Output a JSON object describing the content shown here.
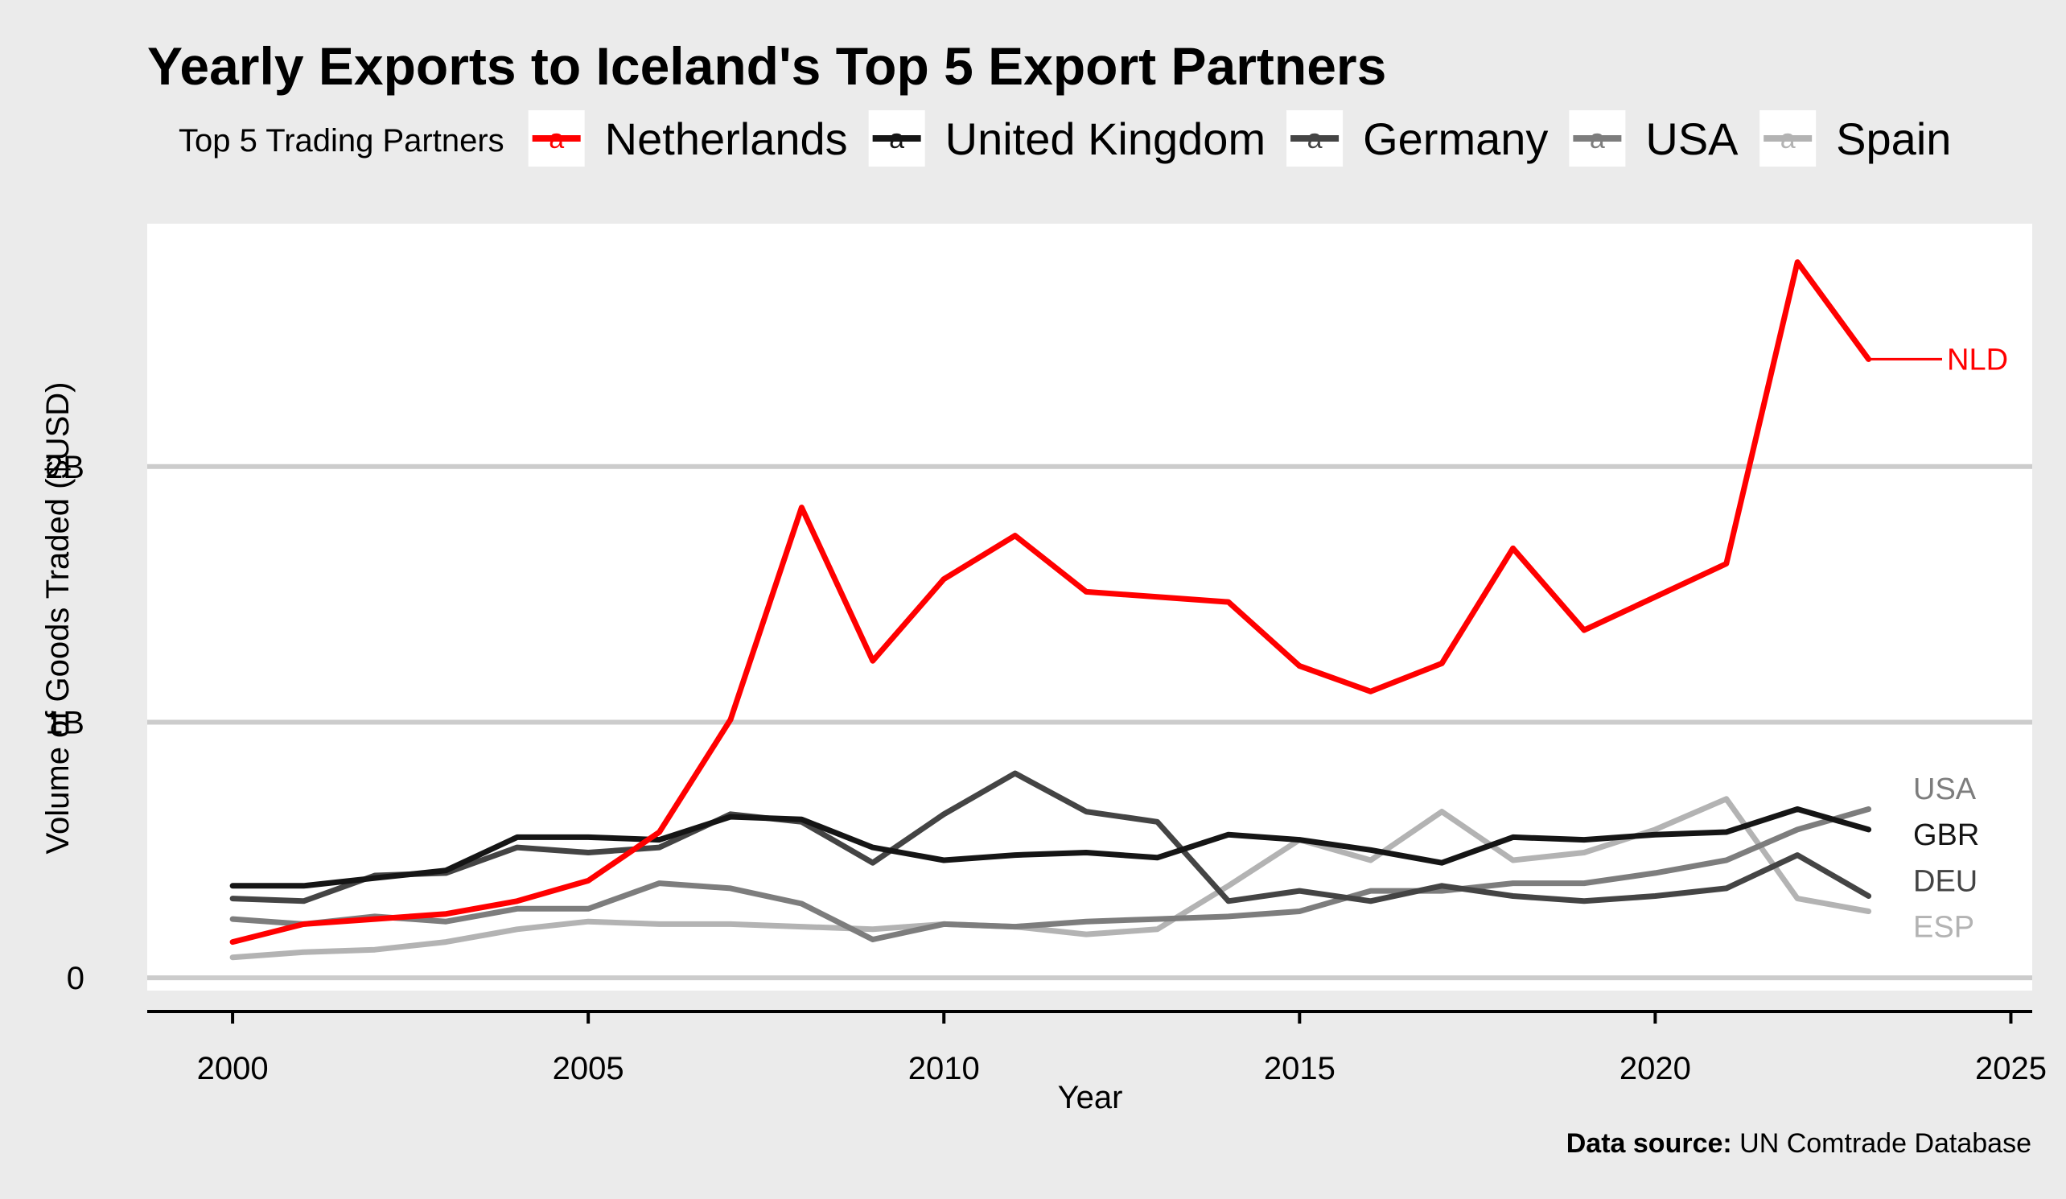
{
  "chart_data": {
    "type": "line",
    "title": "Yearly Exports to Iceland's Top 5 Export Partners",
    "xlabel": "Year",
    "ylabel": "Volume of Goods Traded ($USD)",
    "caption_bold": "Data source:",
    "caption_text": " UN Comtrade Database",
    "legend_title": "Top 5 Trading Partners",
    "legend_key_glyph": "a",
    "legend_position": "top",
    "grid": "horizontal-major",
    "xlim": [
      1998.8,
      2025.3
    ],
    "ylim": [
      -0.05,
      2.95
    ],
    "x_ticks": [
      2000,
      2005,
      2010,
      2015,
      2020,
      2025
    ],
    "x_tick_labels": [
      "2000",
      "2005",
      "2010",
      "2015",
      "2020",
      "2025"
    ],
    "y_ticks": [
      0,
      1,
      2
    ],
    "y_tick_labels": [
      "0",
      "1B",
      "2B"
    ],
    "x": [
      2000,
      2001,
      2002,
      2003,
      2004,
      2005,
      2006,
      2007,
      2008,
      2009,
      2010,
      2011,
      2012,
      2013,
      2014,
      2015,
      2016,
      2017,
      2018,
      2019,
      2020,
      2021,
      2022,
      2023
    ],
    "series": [
      {
        "name": "Netherlands",
        "code": "NLD",
        "color": "#ff0000",
        "values": [
          0.14,
          0.21,
          0.23,
          0.25,
          0.3,
          0.38,
          0.57,
          1.01,
          1.84,
          1.24,
          1.56,
          1.73,
          1.51,
          1.49,
          1.47,
          1.22,
          1.12,
          1.23,
          1.68,
          1.36,
          1.49,
          1.62,
          2.8,
          2.42
        ]
      },
      {
        "name": "United Kingdom",
        "code": "GBR",
        "color": "#151515",
        "values": [
          0.36,
          0.36,
          0.39,
          0.42,
          0.55,
          0.55,
          0.54,
          0.63,
          0.62,
          0.51,
          0.46,
          0.48,
          0.49,
          0.47,
          0.56,
          0.54,
          0.5,
          0.45,
          0.55,
          0.54,
          0.56,
          0.57,
          0.66,
          0.58
        ]
      },
      {
        "name": "Germany",
        "code": "DEU",
        "color": "#444444",
        "values": [
          0.31,
          0.3,
          0.4,
          0.41,
          0.51,
          0.49,
          0.51,
          0.64,
          0.61,
          0.45,
          0.64,
          0.8,
          0.65,
          0.61,
          0.3,
          0.34,
          0.3,
          0.36,
          0.32,
          0.3,
          0.32,
          0.35,
          0.48,
          0.32
        ]
      },
      {
        "name": "USA",
        "code": "USA",
        "color": "#7d7d7d",
        "values": [
          0.23,
          0.21,
          0.24,
          0.22,
          0.27,
          0.27,
          0.37,
          0.35,
          0.29,
          0.15,
          0.21,
          0.2,
          0.22,
          0.23,
          0.24,
          0.26,
          0.34,
          0.34,
          0.37,
          0.37,
          0.41,
          0.46,
          0.58,
          0.66
        ]
      },
      {
        "name": "Spain",
        "code": "ESP",
        "color": "#b3b3b3",
        "values": [
          0.08,
          0.1,
          0.11,
          0.14,
          0.19,
          0.22,
          0.21,
          0.21,
          0.2,
          0.19,
          0.21,
          0.2,
          0.17,
          0.19,
          0.36,
          0.54,
          0.46,
          0.65,
          0.46,
          0.49,
          0.58,
          0.7,
          0.31,
          0.26
        ]
      }
    ],
    "end_labels": [
      {
        "code": "NLD",
        "text": "NLD",
        "color": "#ff0000",
        "value": 2.42
      },
      {
        "code": "USA",
        "text": "USA",
        "color": "#7d7d7d",
        "value": 0.74
      },
      {
        "code": "GBR",
        "text": "GBR",
        "color": "#151515",
        "value": 0.56
      },
      {
        "code": "DEU",
        "text": "DEU",
        "color": "#444444",
        "value": 0.38
      },
      {
        "code": "ESP",
        "text": "ESP",
        "color": "#b3b3b3",
        "value": 0.2
      }
    ]
  }
}
